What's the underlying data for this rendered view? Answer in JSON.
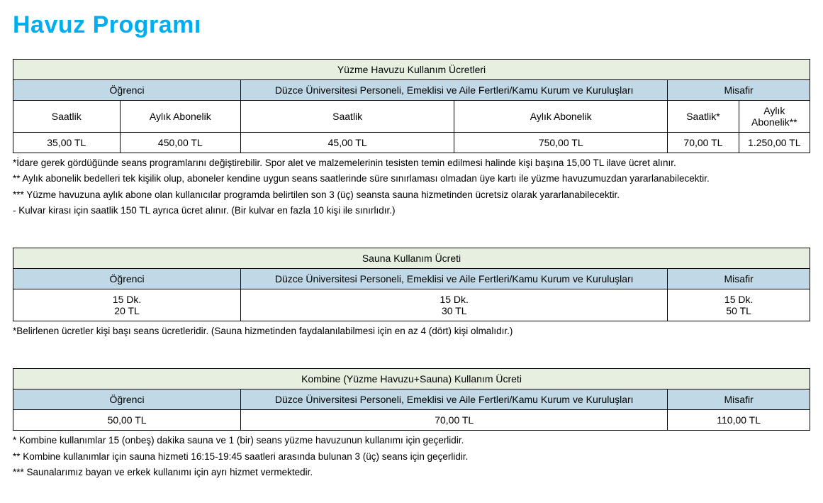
{
  "page": {
    "title": "Havuz Programı"
  },
  "colors": {
    "title": "#00aeef",
    "header_green": "#e6efe0",
    "header_blue": "#c1d9e6",
    "border": "#000000",
    "background": "#ffffff",
    "text": "#000000"
  },
  "pool": {
    "title": "Yüzme Havuzu Kullanım Ücretleri",
    "groups": {
      "student": "Öğrenci",
      "staff": "Düzce Üniversitesi Personeli, Emeklisi ve Aile Fertleri/Kamu Kurum ve Kuruluşları",
      "guest": "Misafir"
    },
    "subheaders": {
      "student_hourly": "Saatlik",
      "student_monthly": "Aylık Abonelik",
      "staff_hourly": "Saatlik",
      "staff_monthly": "Aylık Abonelik",
      "guest_hourly": "Saatlik*",
      "guest_monthly": "Aylık Abonelik**"
    },
    "prices": {
      "student_hourly": "35,00 TL",
      "student_monthly": "450,00 TL",
      "staff_hourly": "45,00 TL",
      "staff_monthly": "750,00 TL",
      "guest_hourly": "70,00 TL",
      "guest_monthly": "1.250,00 TL"
    },
    "notes": {
      "n1": "*İdare gerek gördüğünde seans programlarını değiştirebilir. Spor alet ve malzemelerinin tesisten temin edilmesi halinde kişi başına 15,00 TL ilave ücret alınır.",
      "n2": "** Aylık abonelik bedelleri tek kişilik olup, aboneler kendine uygun seans saatlerinde süre sınırlaması olmadan üye kartı ile yüzme havuzumuzdan yararlanabilecektir.",
      "n3": "*** Yüzme havuzuna aylık abone olan kullanıcılar programda belirtilen son 3 (üç)  seansta sauna hizmetinden ücretsiz olarak yararlanabilecektir.",
      "n4": "- Kulvar kirası için saatlik 150 TL ayrıca ücret alınır.  (Bir kulvar en fazla 10 kişi ile sınırlıdır.)"
    }
  },
  "sauna": {
    "title": "Sauna Kullanım Ücreti",
    "groups": {
      "student": "Öğrenci",
      "staff": "Düzce Üniversitesi Personeli, Emeklisi ve Aile Fertleri/Kamu Kurum ve Kuruluşları",
      "guest": "Misafir"
    },
    "cells": {
      "student_l1": "15 Dk.",
      "student_l2": "20 TL",
      "staff_l1": "15 Dk.",
      "staff_l2": "30 TL",
      "guest_l1": "15 Dk.",
      "guest_l2": "50 TL"
    },
    "notes": {
      "n1": "*Belirlenen ücretler kişi başı seans ücretleridir. (Sauna hizmetinden faydalanılabilmesi için en az 4 (dört) kişi olmalıdır.)"
    }
  },
  "combo": {
    "title": "Kombine (Yüzme Havuzu+Sauna) Kullanım Ücreti",
    "groups": {
      "student": "Öğrenci",
      "staff": "Düzce Üniversitesi Personeli, Emeklisi ve Aile Fertleri/Kamu Kurum ve Kuruluşları",
      "guest": "Misafir"
    },
    "prices": {
      "student": "50,00 TL",
      "staff": "70,00 TL",
      "guest": "110,00 TL"
    },
    "notes": {
      "n1": "* Kombine kullanımlar 15 (onbeş) dakika sauna ve 1 (bir) seans yüzme havuzunun kullanımı için geçerlidir.",
      "n2": "** Kombine kullanımlar için sauna hizmeti 16:15-19:45 saatleri arasında bulunan 3 (üç) seans için geçerlidir.",
      "n3": "*** Saunalarımız bayan ve erkek kullanımı için ayrı hizmet vermektedir."
    }
  }
}
